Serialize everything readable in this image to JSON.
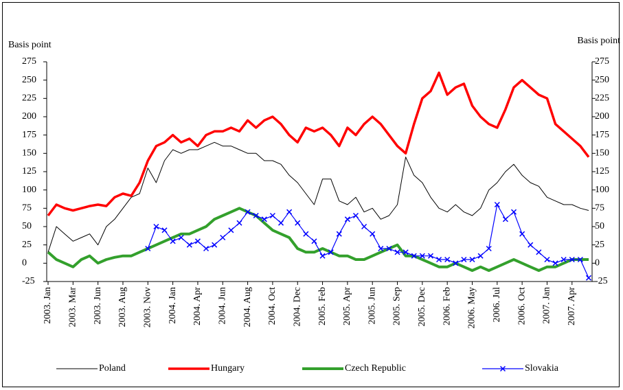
{
  "chart_data": {
    "type": "line",
    "y_label": "Basis point",
    "y2_label": "Basis point",
    "categories": [
      "2003. Jan",
      null,
      null,
      "2003. Mar",
      null,
      null,
      "2003. Jun",
      null,
      null,
      "2003. Aug",
      null,
      null,
      "2003. Nov",
      null,
      null,
      "2004. Jan",
      null,
      null,
      "2004. Apr",
      null,
      null,
      "2004. Jun",
      null,
      null,
      "2004. Aug",
      null,
      null,
      "2004. Oct",
      null,
      null,
      "2004. Dec",
      null,
      null,
      "2005. Feb",
      null,
      null,
      "2005. Apr",
      null,
      null,
      "2005. Jun",
      null,
      null,
      "2005. Sep",
      null,
      null,
      "2005. Dec",
      null,
      null,
      "2006. Feb",
      null,
      null,
      "2006. May",
      null,
      null,
      "2006. Jul",
      null,
      null,
      "2006. Oct",
      null,
      null,
      "2007. Jan",
      null,
      null,
      "2007. Apr",
      null,
      null
    ],
    "ylim": [
      -25,
      275
    ],
    "yticks": [
      -25,
      0,
      25,
      50,
      75,
      100,
      125,
      150,
      175,
      200,
      225,
      250,
      275
    ],
    "y2lim": [
      -25,
      275
    ],
    "y2ticks": [
      -25,
      0,
      25,
      50,
      75,
      100,
      125,
      150,
      175,
      200,
      225,
      250,
      275
    ],
    "legend": "bottom",
    "series": [
      {
        "name": "Poland",
        "color": "#000000",
        "line_width": 1,
        "values": [
          15,
          50,
          40,
          30,
          35,
          40,
          25,
          50,
          60,
          75,
          90,
          95,
          130,
          110,
          140,
          155,
          150,
          155,
          155,
          160,
          165,
          160,
          160,
          155,
          150,
          150,
          140,
          140,
          135,
          120,
          110,
          95,
          80,
          115,
          115,
          85,
          80,
          90,
          70,
          75,
          60,
          65,
          80,
          145,
          120,
          110,
          90,
          75,
          70,
          80,
          70,
          65,
          75,
          100,
          110,
          125,
          135,
          120,
          110,
          105,
          90,
          85,
          80,
          80,
          75,
          72
        ]
      },
      {
        "name": "Hungary",
        "color": "#ff0000",
        "line_width": 3.5,
        "values": [
          65,
          80,
          75,
          72,
          75,
          78,
          80,
          78,
          90,
          95,
          92,
          110,
          140,
          160,
          165,
          175,
          165,
          170,
          160,
          175,
          180,
          180,
          185,
          180,
          195,
          185,
          195,
          200,
          190,
          175,
          165,
          185,
          180,
          185,
          175,
          160,
          185,
          175,
          190,
          200,
          190,
          175,
          160,
          150,
          190,
          225,
          235,
          260,
          230,
          240,
          245,
          215,
          200,
          190,
          185,
          210,
          240,
          250,
          240,
          230,
          225,
          190,
          180,
          170,
          160,
          145
        ]
      },
      {
        "name": "Czech Republic",
        "color": "#33a02c",
        "line_width": 4,
        "values": [
          15,
          5,
          0,
          -5,
          5,
          10,
          0,
          5,
          8,
          10,
          10,
          15,
          20,
          25,
          30,
          35,
          40,
          40,
          45,
          50,
          60,
          65,
          70,
          75,
          70,
          65,
          55,
          45,
          40,
          35,
          20,
          15,
          15,
          20,
          15,
          10,
          10,
          5,
          5,
          10,
          15,
          20,
          25,
          10,
          10,
          5,
          0,
          -5,
          -5,
          0,
          -5,
          -10,
          -5,
          -10,
          -5,
          0,
          5,
          0,
          -5,
          -10,
          -5,
          -5,
          0,
          5,
          5,
          5
        ]
      },
      {
        "name": "Slovakia",
        "color": "#0000ff",
        "line_width": 1.2,
        "marker": "x",
        "values": [
          null,
          null,
          null,
          null,
          null,
          null,
          null,
          null,
          null,
          null,
          null,
          null,
          20,
          50,
          45,
          30,
          35,
          25,
          30,
          20,
          25,
          35,
          45,
          55,
          70,
          65,
          60,
          65,
          55,
          70,
          55,
          40,
          30,
          10,
          15,
          40,
          60,
          65,
          50,
          40,
          20,
          20,
          15,
          15,
          10,
          10,
          10,
          5,
          5,
          0,
          5,
          5,
          10,
          20,
          80,
          60,
          70,
          40,
          25,
          15,
          5,
          0,
          5,
          5,
          5,
          -20
        ]
      }
    ]
  }
}
